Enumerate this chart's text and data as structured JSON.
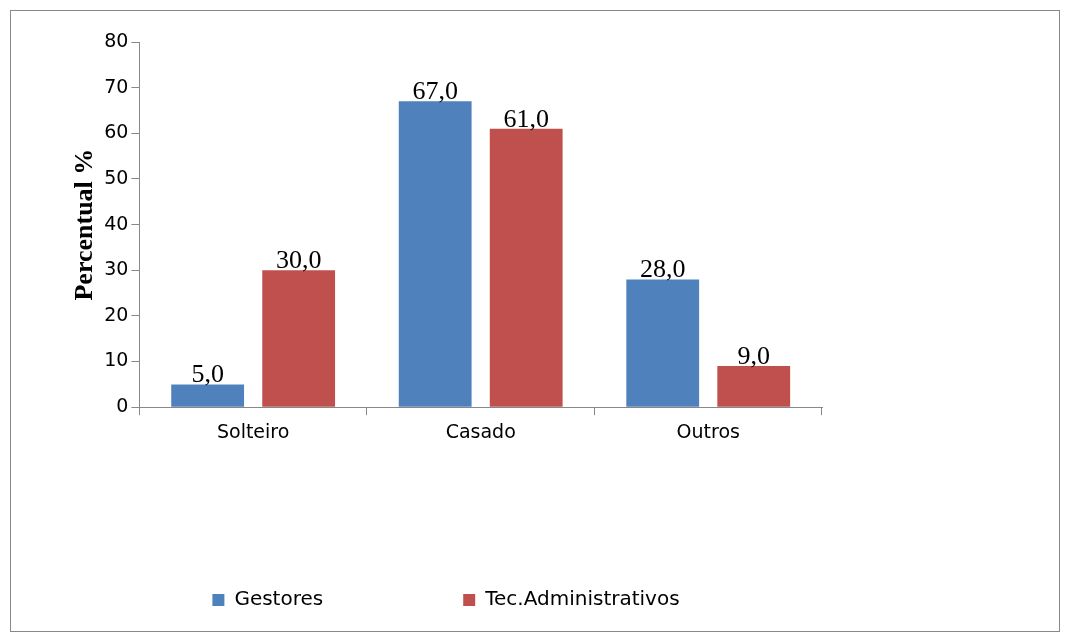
{
  "chart_data": {
    "type": "bar",
    "ylabel": "Percentual %",
    "categories": [
      "Solteiro",
      "Casado",
      "Outros"
    ],
    "series": [
      {
        "name": "Gestores",
        "color": "#4f81bd",
        "values": [
          5,
          67,
          28
        ],
        "value_labels": [
          "5,0",
          "67,0",
          "28,0"
        ]
      },
      {
        "name": "Tec.Administrativos",
        "color": "#c0504d",
        "values": [
          30,
          61,
          9
        ],
        "value_labels": [
          "30,0",
          "61,0",
          "9,0"
        ]
      }
    ],
    "ylim": [
      0,
      80
    ],
    "yticks": [
      0,
      10,
      20,
      30,
      40,
      50,
      60,
      70,
      80
    ],
    "grid": false,
    "legend": "bottom"
  }
}
